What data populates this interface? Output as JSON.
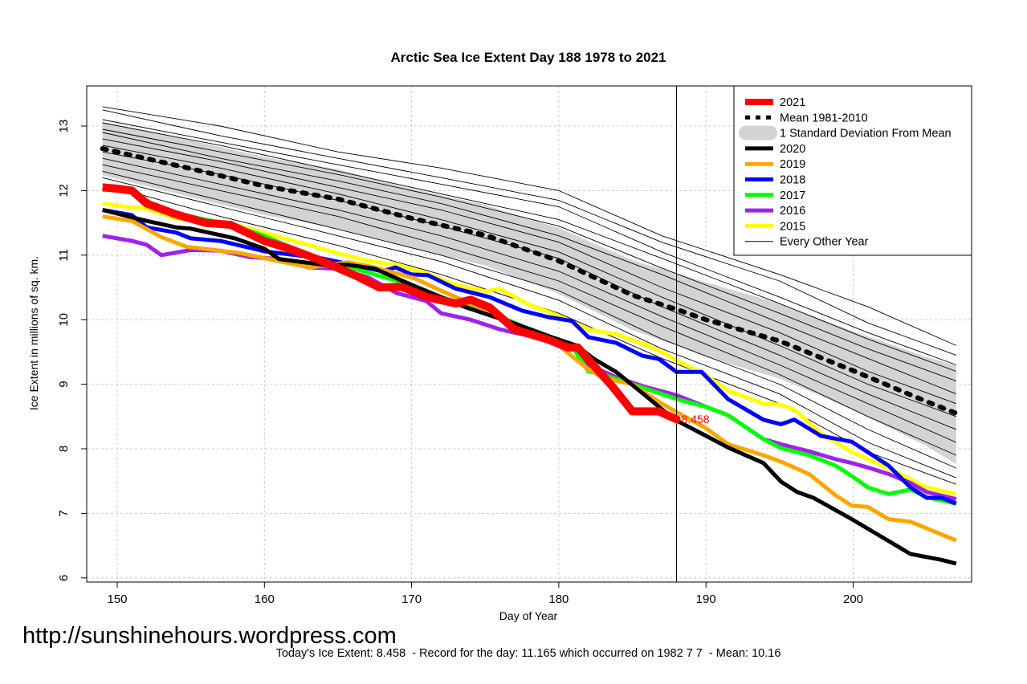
{
  "chart_data": {
    "type": "line",
    "title": "Arctic Sea Ice Extent Day 188 1978 to 2021",
    "xlabel": "Day of Year",
    "ylabel": "Ice Extent in millions of sq. km.",
    "xlim": [
      148,
      208
    ],
    "ylim": [
      5.95,
      13.6
    ],
    "xticks": [
      150,
      160,
      170,
      180,
      190,
      200
    ],
    "yticks": [
      6,
      7,
      8,
      9,
      10,
      11,
      12,
      13
    ],
    "grid": true,
    "legend_position": "top-right",
    "current_day": 188,
    "current_value_label": "8.458",
    "band": {
      "name": "1 Standard Deviation From Mean",
      "color": "#d3d3d3",
      "x": [
        149,
        155,
        160,
        165,
        170,
        175,
        180,
        185,
        188,
        190,
        195,
        200,
        205,
        207
      ],
      "upper": [
        13.06,
        12.78,
        12.52,
        12.33,
        12.03,
        11.78,
        11.42,
        10.92,
        10.72,
        10.58,
        10.25,
        9.82,
        9.42,
        9.29
      ],
      "lower": [
        12.24,
        11.9,
        11.62,
        11.41,
        11.1,
        10.84,
        10.4,
        9.84,
        9.6,
        9.42,
        9.09,
        8.6,
        8.04,
        7.76
      ]
    },
    "mean": {
      "name": "Mean 1981-2010",
      "color": "#000000",
      "x": [
        149,
        155,
        160,
        165,
        170,
        175,
        180,
        185,
        188,
        190,
        195,
        200,
        205,
        207
      ],
      "y": [
        12.65,
        12.34,
        12.07,
        11.87,
        11.57,
        11.31,
        10.91,
        10.38,
        10.16,
        10.0,
        9.67,
        9.21,
        8.73,
        8.55
      ]
    },
    "series": [
      {
        "name": "2021",
        "color": "#ff0000",
        "x": [
          149,
          150,
          151,
          152,
          154,
          156,
          157.7,
          160,
          161.7,
          163.9,
          166.4,
          167.8,
          169.3,
          171.1,
          173,
          174,
          175.3,
          177,
          179.3,
          180.6,
          181.3,
          182.6,
          183.7,
          185,
          186.8,
          188
        ],
        "y": [
          12.05,
          12.03,
          12.0,
          11.8,
          11.63,
          11.5,
          11.47,
          11.22,
          11.1,
          10.91,
          10.66,
          10.5,
          10.51,
          10.35,
          10.25,
          10.31,
          10.19,
          9.85,
          9.69,
          9.57,
          9.57,
          9.23,
          8.95,
          8.58,
          8.58,
          8.458
        ]
      },
      {
        "name": "2020",
        "color": "#000000",
        "x": [
          149,
          152,
          154,
          155,
          158,
          160,
          161,
          164,
          165.7,
          167.5,
          170,
          173.7,
          177,
          179.5,
          181.2,
          182.4,
          183.9,
          185.7,
          187.5,
          187.9,
          190,
          191.5,
          193.9,
          195.1,
          196.2,
          197.3,
          199.9,
          203.9,
          206,
          207
        ],
        "y": [
          11.7,
          11.53,
          11.43,
          11.41,
          11.26,
          11.1,
          10.94,
          10.85,
          10.85,
          10.79,
          10.54,
          10.19,
          9.94,
          9.73,
          9.6,
          9.39,
          9.19,
          8.86,
          8.52,
          8.45,
          8.2,
          8.02,
          7.78,
          7.49,
          7.33,
          7.24,
          6.91,
          6.37,
          6.28,
          6.22
        ]
      },
      {
        "name": "2019",
        "color": "#ffa500",
        "x": [
          149,
          151,
          153,
          154.7,
          158.4,
          161.3,
          163.1,
          165.7,
          167.5,
          170.2,
          172,
          175,
          177,
          180,
          182,
          183,
          185,
          187,
          188,
          190,
          191.5,
          193.9,
          195.1,
          197,
          198.8,
          199.9,
          201,
          202.4,
          203.9,
          207
        ],
        "y": [
          11.6,
          11.53,
          11.28,
          11.13,
          11.03,
          10.89,
          10.81,
          10.89,
          10.81,
          10.64,
          10.45,
          10.15,
          9.9,
          9.6,
          9.23,
          9.1,
          9.0,
          8.7,
          8.57,
          8.32,
          8.07,
          7.9,
          7.8,
          7.61,
          7.28,
          7.12,
          7.1,
          6.91,
          6.87,
          6.58
        ]
      },
      {
        "name": "2018",
        "color": "#0000ff",
        "x": [
          149,
          151,
          152,
          154,
          155,
          157,
          160,
          163.9,
          166,
          168,
          168.9,
          170,
          171.1,
          173,
          175.3,
          177.5,
          179.3,
          180.9,
          182,
          183.9,
          185.7,
          186.8,
          188,
          189.7,
          191.5,
          193.9,
          195.1,
          196,
          197.8,
          199.9,
          202.4,
          203.9,
          205,
          206,
          207
        ],
        "y": [
          11.7,
          11.62,
          11.43,
          11.35,
          11.26,
          11.22,
          11.06,
          10.95,
          10.85,
          10.75,
          10.81,
          10.7,
          10.69,
          10.48,
          10.35,
          10.14,
          10.04,
          9.98,
          9.73,
          9.64,
          9.44,
          9.39,
          9.19,
          9.19,
          8.77,
          8.45,
          8.38,
          8.45,
          8.2,
          8.11,
          7.74,
          7.4,
          7.24,
          7.24,
          7.15
        ]
      },
      {
        "name": "2017",
        "color": "#00ff00",
        "x": [
          149,
          151,
          153,
          155,
          158,
          160,
          163,
          166,
          169,
          172,
          175,
          177,
          179,
          181,
          182,
          183,
          185,
          187,
          188,
          190,
          191.5,
          193.9,
          195.1,
          197,
          198.8,
          199.9,
          201,
          202.4,
          203.9,
          205,
          207
        ],
        "y": [
          12.05,
          12.0,
          11.7,
          11.6,
          11.45,
          11.3,
          11.0,
          10.8,
          10.6,
          10.35,
          10.15,
          9.95,
          9.75,
          9.55,
          9.2,
          9.15,
          9.0,
          8.85,
          8.77,
          8.65,
          8.52,
          8.15,
          8.01,
          7.9,
          7.74,
          7.58,
          7.4,
          7.3,
          7.37,
          7.25,
          7.15
        ]
      },
      {
        "name": "2016",
        "color": "#a020f0",
        "x": [
          149,
          151,
          152,
          153,
          155,
          157,
          159,
          161,
          163,
          165,
          167,
          169,
          171,
          172,
          174,
          176,
          178,
          181,
          182,
          184,
          186,
          188,
          190,
          191.5,
          193.9,
          195.1,
          197,
          198.8,
          199.9,
          201,
          202.4,
          203.9,
          205,
          207
        ],
        "y": [
          11.3,
          11.22,
          11.16,
          11.0,
          11.08,
          11.07,
          10.97,
          10.94,
          10.81,
          10.79,
          10.66,
          10.41,
          10.29,
          10.1,
          10.0,
          9.85,
          9.75,
          9.55,
          9.3,
          9.1,
          8.95,
          8.83,
          8.65,
          8.52,
          8.15,
          8.07,
          7.96,
          7.84,
          7.78,
          7.71,
          7.61,
          7.47,
          7.33,
          7.22
        ]
      },
      {
        "name": "2015",
        "color": "#ffff00",
        "x": [
          149,
          151,
          152,
          154,
          156,
          158,
          160,
          162,
          165,
          167,
          169,
          171,
          173,
          175,
          176,
          178,
          180,
          182,
          184,
          186,
          187.5,
          188,
          190,
          191.5,
          193.9,
          195.1,
          196,
          197.8,
          199.9,
          202.4,
          205,
          207
        ],
        "y": [
          11.8,
          11.74,
          11.72,
          11.57,
          11.53,
          11.47,
          11.35,
          11.22,
          11.03,
          10.91,
          10.85,
          10.72,
          10.54,
          10.44,
          10.48,
          10.23,
          10.06,
          9.85,
          9.77,
          9.6,
          9.44,
          9.37,
          9.14,
          8.9,
          8.7,
          8.68,
          8.61,
          8.24,
          7.95,
          7.7,
          7.4,
          7.3
        ]
      }
    ],
    "other_years": {
      "name": "Every Other Year",
      "color": "#000000",
      "x": [
        149,
        157,
        165,
        172,
        180,
        187,
        195,
        201,
        207
      ],
      "lines": [
        [
          13.3,
          13.0,
          12.6,
          12.35,
          12.0,
          11.3,
          10.7,
          10.2,
          9.6
        ],
        [
          13.25,
          12.85,
          12.5,
          12.2,
          11.85,
          11.2,
          10.6,
          9.95,
          9.45
        ],
        [
          13.1,
          12.75,
          12.4,
          12.1,
          11.75,
          11.05,
          10.35,
          9.8,
          9.3
        ],
        [
          13.05,
          12.7,
          12.3,
          11.95,
          11.55,
          10.95,
          10.25,
          9.7,
          9.2
        ],
        [
          12.95,
          12.6,
          12.25,
          11.9,
          11.45,
          10.8,
          10.1,
          9.55,
          9.05
        ],
        [
          12.9,
          12.5,
          12.15,
          11.8,
          11.3,
          10.7,
          9.95,
          9.4,
          8.85
        ],
        [
          12.8,
          12.45,
          12.05,
          11.7,
          11.2,
          10.5,
          9.8,
          9.2,
          8.7
        ],
        [
          12.7,
          12.35,
          11.95,
          11.55,
          11.05,
          10.35,
          9.6,
          9.0,
          8.5
        ],
        [
          12.6,
          12.25,
          11.85,
          11.45,
          10.95,
          10.2,
          9.45,
          8.85,
          8.3
        ],
        [
          12.5,
          12.1,
          11.7,
          11.3,
          10.75,
          10.05,
          9.3,
          8.7,
          8.1
        ],
        [
          12.4,
          12.0,
          11.6,
          11.15,
          10.6,
          9.9,
          9.15,
          8.5,
          7.9
        ],
        [
          12.3,
          11.85,
          11.4,
          11.0,
          10.45,
          9.7,
          9.0,
          8.3,
          7.7
        ],
        [
          12.2,
          11.75,
          11.3,
          10.9,
          10.3,
          9.55,
          8.85,
          8.1,
          7.55
        ],
        [
          12.1,
          11.6,
          11.15,
          10.7,
          10.1,
          9.4,
          8.7,
          7.95,
          7.45
        ]
      ]
    }
  },
  "legend": {
    "entries": [
      "2021",
      "Mean 1981-2010",
      "1 Standard Deviation From Mean",
      "2020",
      "2019",
      "2018",
      "2017",
      "2016",
      "2015",
      "Every Other Year"
    ]
  },
  "watermark": "http://sunshinehours.wordpress.com",
  "footer": "Today's Ice Extent: 8.458  - Record for the day: 11.165 which occurred on 1982 7 7  - Mean: 10.16"
}
